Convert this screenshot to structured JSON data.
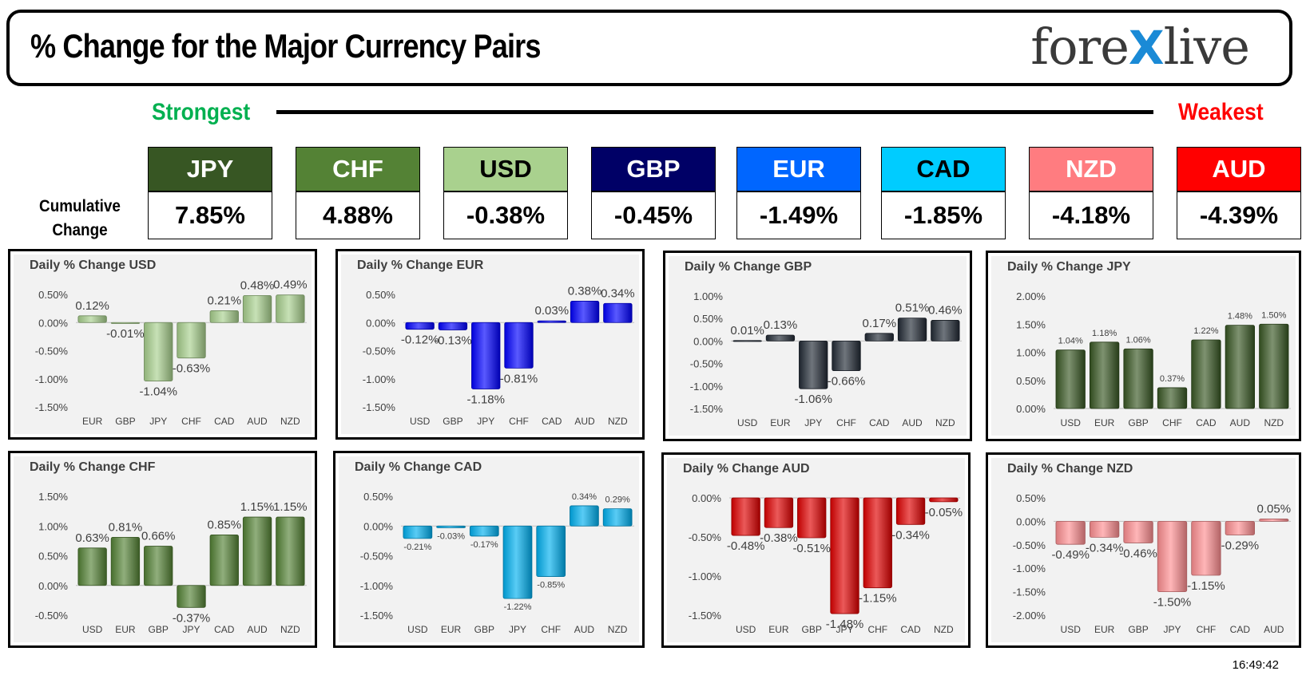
{
  "header": {
    "title": "% Change for the Major Currency Pairs",
    "logo_left": "fore",
    "logo_x": "X",
    "logo_right": "live"
  },
  "ranking": {
    "strongest_label": "Strongest",
    "weakest_label": "Weakest",
    "cumulative_label_1": "Cumulative",
    "cumulative_label_2": "Change",
    "currencies": [
      {
        "code": "JPY",
        "value": "7.85%",
        "bg": "#375623",
        "fg": "#ffffff"
      },
      {
        "code": "CHF",
        "value": "4.88%",
        "bg": "#548235",
        "fg": "#ffffff"
      },
      {
        "code": "USD",
        "value": "-0.38%",
        "bg": "#a9d18e",
        "fg": "#000000"
      },
      {
        "code": "GBP",
        "value": "-0.45%",
        "bg": "#000066",
        "fg": "#ffffff"
      },
      {
        "code": "EUR",
        "value": "-1.49%",
        "bg": "#0066ff",
        "fg": "#ffffff"
      },
      {
        "code": "CAD",
        "value": "-1.85%",
        "bg": "#00ccff",
        "fg": "#000000"
      },
      {
        "code": "NZD",
        "value": "-4.18%",
        "bg": "#ff7c80",
        "fg": "#ffffff"
      },
      {
        "code": "AUD",
        "value": "-4.39%",
        "bg": "#ff0000",
        "fg": "#ffffff"
      }
    ]
  },
  "timestamp": "16:49:42",
  "chart_data": [
    {
      "type": "bar",
      "title": "Daily % Change USD",
      "color": "#a9d18e",
      "categories": [
        "EUR",
        "GBP",
        "JPY",
        "CHF",
        "CAD",
        "AUD",
        "NZD"
      ],
      "values": [
        0.12,
        -0.01,
        -1.04,
        -0.63,
        0.21,
        0.48,
        0.49
      ],
      "labels": [
        "0.12%",
        "-0.01%",
        "-1.04%",
        "-0.63%",
        "0.21%",
        "0.48%",
        "0.49%"
      ],
      "ylim": [
        -1.5,
        0.5
      ],
      "ticks": [
        0.5,
        0,
        -0.5,
        -1,
        -1.5
      ],
      "tick_labels": [
        "0.50%",
        "0.00%",
        "-0.50%",
        "-1.00%",
        "-1.50%"
      ],
      "label_size": 15
    },
    {
      "type": "bar",
      "title": "Daily % Change EUR",
      "color": "#0000ff",
      "categories": [
        "USD",
        "GBP",
        "JPY",
        "CHF",
        "CAD",
        "AUD",
        "NZD"
      ],
      "values": [
        -0.12,
        -0.13,
        -1.18,
        -0.81,
        0.03,
        0.38,
        0.34
      ],
      "labels": [
        "-0.12%",
        "-0.13%",
        "-1.18%",
        "-0.81%",
        "0.03%",
        "0.38%",
        "0.34%"
      ],
      "ylim": [
        -1.5,
        0.5
      ],
      "ticks": [
        0.5,
        0,
        -0.5,
        -1,
        -1.5
      ],
      "tick_labels": [
        "0.50%",
        "0.00%",
        "-0.50%",
        "-1.00%",
        "-1.50%"
      ],
      "label_size": 15
    },
    {
      "type": "bar",
      "title": "Daily % Change GBP",
      "color": "#222a35",
      "categories": [
        "USD",
        "EUR",
        "JPY",
        "CHF",
        "CAD",
        "AUD",
        "NZD"
      ],
      "values": [
        0.01,
        0.13,
        -1.06,
        -0.66,
        0.17,
        0.51,
        0.46
      ],
      "labels": [
        "0.01%",
        "0.13%",
        "-1.06%",
        "-0.66%",
        "0.17%",
        "0.51%",
        "0.46%"
      ],
      "ylim": [
        -1.5,
        1.0
      ],
      "ticks": [
        1,
        0.5,
        0,
        -0.5,
        -1,
        -1.5
      ],
      "tick_labels": [
        "1.00%",
        "0.50%",
        "0.00%",
        "-0.50%",
        "-1.00%",
        "-1.50%"
      ],
      "label_size": 15
    },
    {
      "type": "bar",
      "title": "Daily % Change JPY",
      "color": "#385723",
      "categories": [
        "USD",
        "EUR",
        "GBP",
        "CHF",
        "CAD",
        "AUD",
        "NZD"
      ],
      "values": [
        1.04,
        1.18,
        1.06,
        0.37,
        1.22,
        1.48,
        1.5
      ],
      "labels": [
        "1.04%",
        "1.18%",
        "1.06%",
        "0.37%",
        "1.22%",
        "1.48%",
        "1.50%"
      ],
      "ylim": [
        0,
        2.0
      ],
      "ticks": [
        2,
        1.5,
        1,
        0.5,
        0
      ],
      "tick_labels": [
        "2.00%",
        "1.50%",
        "1.00%",
        "0.50%",
        "0.00%"
      ],
      "label_size": 11
    },
    {
      "type": "bar",
      "title": "Daily % Change CHF",
      "color": "#548235",
      "categories": [
        "USD",
        "EUR",
        "GBP",
        "JPY",
        "CAD",
        "AUD",
        "NZD"
      ],
      "values": [
        0.63,
        0.81,
        0.66,
        -0.37,
        0.85,
        1.15,
        1.15
      ],
      "labels": [
        "0.63%",
        "0.81%",
        "0.66%",
        "-0.37%",
        "0.85%",
        "1.15%",
        "1.15%"
      ],
      "ylim": [
        -0.5,
        1.5
      ],
      "ticks": [
        1.5,
        1,
        0.5,
        0,
        -0.5
      ],
      "tick_labels": [
        "1.50%",
        "1.00%",
        "0.50%",
        "0.00%",
        "-0.50%"
      ],
      "label_size": 15
    },
    {
      "type": "bar",
      "title": "Daily % Change CAD",
      "color": "#00b0f0",
      "categories": [
        "USD",
        "EUR",
        "GBP",
        "JPY",
        "CHF",
        "AUD",
        "NZD"
      ],
      "values": [
        -0.21,
        -0.03,
        -0.17,
        -1.22,
        -0.85,
        0.34,
        0.29
      ],
      "labels": [
        "-0.21%",
        "-0.03%",
        "-0.17%",
        "-1.22%",
        "-0.85%",
        "0.34%",
        "0.29%"
      ],
      "ylim": [
        -1.5,
        0.5
      ],
      "ticks": [
        0.5,
        0,
        -0.5,
        -1,
        -1.5
      ],
      "tick_labels": [
        "0.50%",
        "0.00%",
        "-0.50%",
        "-1.00%",
        "-1.50%"
      ],
      "label_size": 11
    },
    {
      "type": "bar",
      "title": "Daily % Change AUD",
      "color": "#e00000",
      "categories": [
        "USD",
        "EUR",
        "GBP",
        "JPY",
        "CHF",
        "CAD",
        "NZD"
      ],
      "values": [
        -0.48,
        -0.38,
        -0.51,
        -1.48,
        -1.15,
        -0.34,
        -0.05
      ],
      "labels": [
        "-0.48%",
        "-0.38%",
        "-0.51%",
        "-1.48%",
        "-1.15%",
        "-0.34%",
        "-0.05%"
      ],
      "ylim": [
        -1.5,
        0
      ],
      "ticks": [
        0,
        -0.5,
        -1,
        -1.5
      ],
      "tick_labels": [
        "0.00%",
        "-0.50%",
        "-1.00%",
        "-1.50%"
      ],
      "label_size": 15
    },
    {
      "type": "bar",
      "title": "Daily % Change NZD",
      "color": "#ff8f92",
      "categories": [
        "USD",
        "EUR",
        "GBP",
        "JPY",
        "CHF",
        "CAD",
        "AUD"
      ],
      "values": [
        -0.49,
        -0.34,
        -0.46,
        -1.5,
        -1.15,
        -0.29,
        0.05
      ],
      "labels": [
        "-0.49%",
        "-0.34%",
        "-0.46%",
        "-1.50%",
        "-1.15%",
        "-0.29%",
        "0.05%"
      ],
      "ylim": [
        -2.0,
        0.5
      ],
      "ticks": [
        0.5,
        0,
        -0.5,
        -1,
        -1.5,
        -2
      ],
      "tick_labels": [
        "0.50%",
        "0.00%",
        "-0.50%",
        "-1.00%",
        "-1.50%",
        "-2.00%"
      ],
      "label_size": 15
    }
  ]
}
